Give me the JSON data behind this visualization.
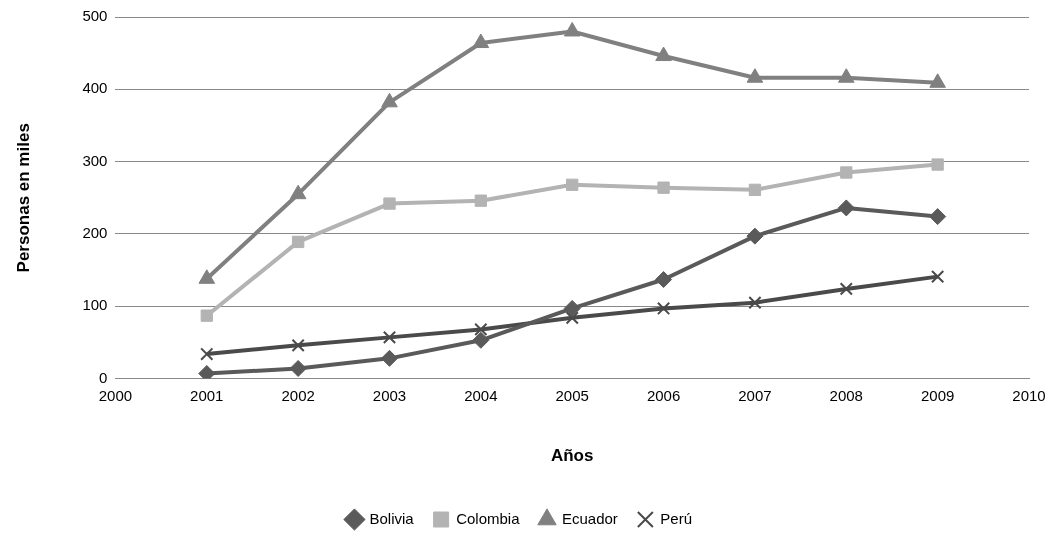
{
  "chart_data": {
    "type": "line",
    "xlabel": "Años",
    "ylabel": "Personas en miles",
    "x": [
      2001,
      2002,
      2003,
      2004,
      2005,
      2006,
      2007,
      2008,
      2009
    ],
    "xlim": [
      2000,
      2010
    ],
    "xticks": [
      2000,
      2001,
      2002,
      2003,
      2004,
      2005,
      2006,
      2007,
      2008,
      2009,
      2010
    ],
    "ylim": [
      0,
      500
    ],
    "yticks": [
      0,
      100,
      200,
      300,
      400,
      500
    ],
    "grid": "y",
    "legend": "bottom",
    "line_style": "solid",
    "series": [
      {
        "name": "Bolivia",
        "color": "#5a5a5a",
        "marker": "diamond",
        "values": [
          7,
          14,
          28,
          53,
          97,
          137,
          197,
          236,
          224
        ]
      },
      {
        "name": "Colombia",
        "color": "#b3b3b3",
        "marker": "square",
        "values": [
          87,
          189,
          242,
          246,
          268,
          264,
          261,
          285,
          296
        ]
      },
      {
        "name": "Ecuador",
        "color": "#808080",
        "marker": "triangle",
        "values": [
          138,
          255,
          382,
          464,
          480,
          446,
          416,
          416,
          409
        ]
      },
      {
        "name": "Perú",
        "color": "#4a4a4a",
        "marker": "cross",
        "values": [
          34,
          46,
          57,
          68,
          84,
          97,
          105,
          124,
          141
        ]
      }
    ]
  }
}
